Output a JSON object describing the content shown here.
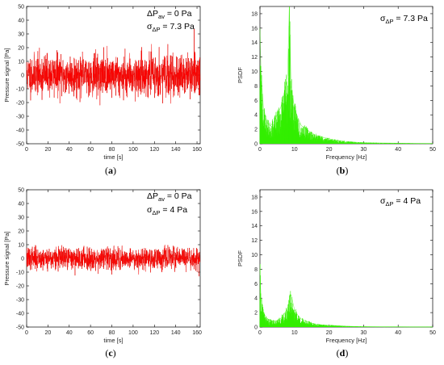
{
  "panels": [
    {
      "id": "a",
      "panel_label": "a",
      "annotation": {
        "line1_prefix": "ΔP",
        "line1_sub": "av",
        "line1_suffix": " = 0 Pa",
        "line2_prefix": "σ",
        "line2_sub": "ΔP",
        "line2_suffix": " = 7.3 Pa"
      }
    },
    {
      "id": "b",
      "panel_label": "b",
      "annotation": {
        "line1_prefix": "σ",
        "line1_sub": "ΔP",
        "line1_suffix": " = 7.3 Pa"
      }
    },
    {
      "id": "c",
      "panel_label": "c",
      "annotation": {
        "line1_prefix": "ΔP",
        "line1_sub": "av",
        "line1_suffix": " = 0 Pa",
        "line2_prefix": "σ",
        "line2_sub": "ΔP",
        "line2_suffix": " = 4 Pa"
      }
    },
    {
      "id": "d",
      "panel_label": "d",
      "annotation": {
        "line1_prefix": "σ",
        "line1_sub": "ΔP",
        "line1_suffix": " = 4 Pa"
      }
    }
  ],
  "chart_data": [
    {
      "type": "line",
      "panel": "a",
      "xlabel": "time [s]",
      "ylabel": "Pressure signal [Pa]",
      "xlim": [
        0,
        163
      ],
      "ylim": [
        -50,
        50
      ],
      "xticks": [
        0,
        20,
        40,
        60,
        80,
        100,
        120,
        140,
        160
      ],
      "yticks": [
        -50,
        -40,
        -30,
        -20,
        -10,
        0,
        10,
        20,
        30,
        40,
        50
      ],
      "grid": false,
      "series": [
        {
          "color": "#ff0000",
          "mean": 0,
          "std": 7.3,
          "duration_s": 163
        }
      ]
    },
    {
      "type": "line",
      "panel": "b",
      "xlabel": "Frequency [Hz]",
      "ylabel": "PSDF",
      "xlim": [
        0,
        50
      ],
      "ylim": [
        0,
        19
      ],
      "xticks": [
        0,
        10,
        20,
        30,
        40,
        50
      ],
      "yticks": [
        0,
        2,
        4,
        6,
        8,
        10,
        12,
        14,
        16,
        18
      ],
      "grid": false,
      "series": [
        {
          "color": "#33ee00",
          "x": [
            0,
            0.3,
            1,
            2,
            3,
            4,
            5,
            6,
            7,
            8,
            8.5,
            9,
            10,
            11,
            12,
            14,
            16,
            18,
            20,
            22,
            25,
            28,
            30,
            35,
            40,
            45,
            50
          ],
          "y": [
            16,
            10,
            5,
            3,
            2.5,
            3,
            4,
            5,
            7,
            9.5,
            19,
            8,
            5,
            3.5,
            2.5,
            1.8,
            1.2,
            0.9,
            0.7,
            0.5,
            0.3,
            0.2,
            0.15,
            0.1,
            0.08,
            0.05,
            0.04
          ]
        }
      ]
    },
    {
      "type": "line",
      "panel": "c",
      "xlabel": "time [s]",
      "ylabel": "Pressure signal [Pa]",
      "xlim": [
        0,
        163
      ],
      "ylim": [
        -50,
        50
      ],
      "xticks": [
        0,
        20,
        40,
        60,
        80,
        100,
        120,
        140,
        160
      ],
      "yticks": [
        -50,
        -40,
        -30,
        -20,
        -10,
        0,
        10,
        20,
        30,
        40,
        50
      ],
      "grid": false,
      "series": [
        {
          "color": "#ff0000",
          "mean": 0,
          "std": 4,
          "duration_s": 163
        }
      ]
    },
    {
      "type": "line",
      "panel": "d",
      "xlabel": "Frequency [Hz]",
      "ylabel": "PSDF",
      "xlim": [
        0,
        50
      ],
      "ylim": [
        0,
        19
      ],
      "xticks": [
        0,
        10,
        20,
        30,
        40,
        50
      ],
      "yticks": [
        0,
        2,
        4,
        6,
        8,
        10,
        12,
        14,
        16,
        18
      ],
      "grid": false,
      "series": [
        {
          "color": "#33ee00",
          "x": [
            0,
            0.3,
            1,
            2,
            3,
            4,
            5,
            6,
            7,
            8,
            9,
            10,
            11,
            12,
            14,
            16,
            18,
            20,
            22,
            25,
            28,
            30,
            35,
            40,
            45,
            50
          ],
          "y": [
            8,
            4,
            2,
            1.2,
            0.9,
            0.8,
            0.9,
            1.2,
            1.8,
            2.6,
            4.5,
            2.4,
            1.6,
            1.1,
            0.7,
            0.4,
            0.3,
            0.25,
            0.2,
            0.12,
            0.08,
            0.06,
            0.04,
            0.03,
            0.02,
            0.02
          ]
        }
      ]
    }
  ]
}
